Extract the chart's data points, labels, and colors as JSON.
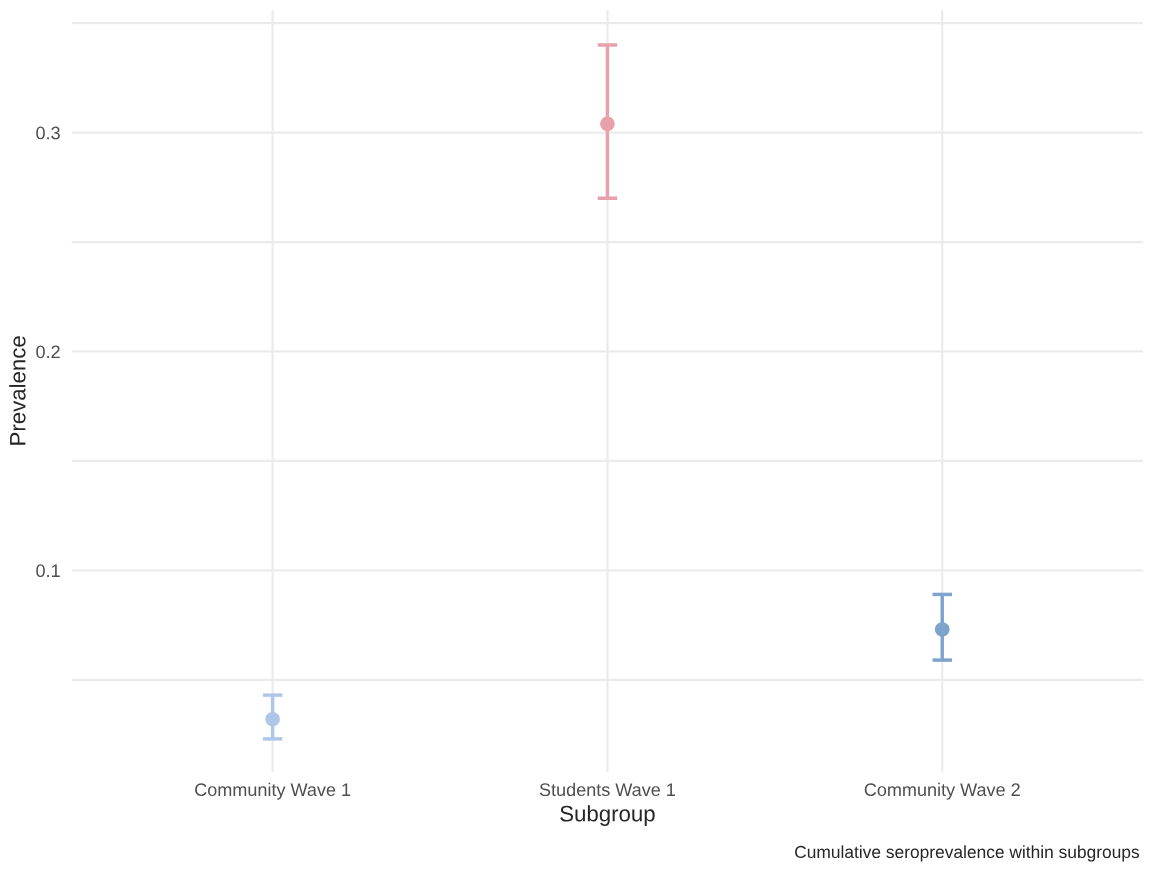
{
  "chart_data": {
    "type": "scatter",
    "xlabel": "Subgroup",
    "ylabel": "Prevalence",
    "categories": [
      "Community Wave 1",
      "Students Wave 1",
      "Community Wave 2"
    ],
    "values": [
      0.032,
      0.304,
      0.073
    ],
    "errors": [
      [
        0.023,
        0.043
      ],
      [
        0.27,
        0.34
      ],
      [
        0.059,
        0.089
      ]
    ],
    "colors": [
      "#aec7e8",
      "#e8a0aa",
      "#7ea3cc"
    ],
    "ylim": [
      0.008,
      0.356
    ],
    "yticks": [
      {
        "value": 0.05,
        "label": null
      },
      {
        "value": 0.1,
        "label": "0.1"
      },
      {
        "value": 0.15,
        "label": null
      },
      {
        "value": 0.2,
        "label": "0.2"
      },
      {
        "value": 0.25,
        "label": null
      },
      {
        "value": 0.3,
        "label": "0.3"
      },
      {
        "value": 0.35,
        "label": null
      }
    ],
    "grid": true,
    "legend": false,
    "marker": "circle",
    "annotations": [
      "Cumulative seroprevalence within subgroups"
    ]
  }
}
